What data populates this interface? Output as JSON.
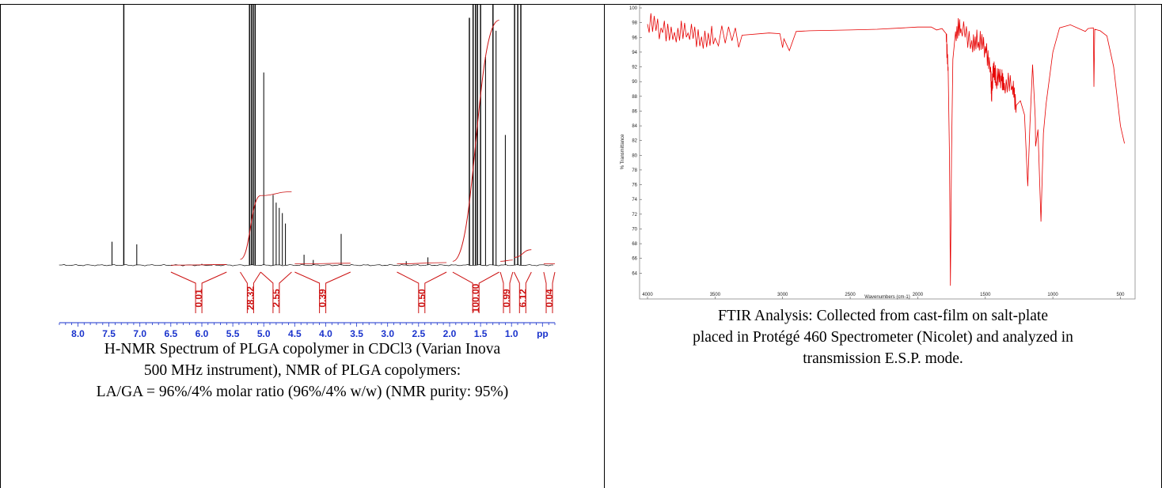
{
  "nmr": {
    "caption_lines": [
      "H-NMR Spectrum of PLGA copolymer in CDCl3 (Varian Inova",
      "500 MHz instrument), NMR of PLGA copolymers:",
      "LA/GA = 96%/4% molar ratio (96%/4% w/w) (NMR purity: 95%)"
    ]
  },
  "ftir": {
    "caption_lines": [
      "FTIR Analysis: Collected from cast-film on salt-plate",
      "placed in Protégé 460 Spectrometer (Nicolet) and analyzed in",
      "transmission E.S.P. mode."
    ]
  },
  "chart_data": [
    {
      "type": "line",
      "id": "nmr",
      "xlabel": "pp",
      "x_tick_labels": [
        "8.0",
        "7.5",
        "7.0",
        "6.5",
        "6.0",
        "5.5",
        "5.0",
        "4.5",
        "4.0",
        "3.5",
        "3.0",
        "2.5",
        "2.0",
        "1.5",
        "1.0",
        "pp"
      ],
      "xlim": [
        8.3,
        0.3
      ],
      "x_reversed": true,
      "colors": {
        "spectrum": "#000000",
        "integral": "#cc1111",
        "axis": "#1a33cc"
      },
      "peaks": [
        {
          "ppm": 7.45,
          "height": 0.09
        },
        {
          "ppm": 7.26,
          "height": 1.0
        },
        {
          "ppm": 7.05,
          "height": 0.08
        },
        {
          "ppm": 6.0,
          "height": 0.005
        },
        {
          "ppm": 5.23,
          "height": 1.0
        },
        {
          "ppm": 5.2,
          "height": 1.0
        },
        {
          "ppm": 5.17,
          "height": 1.0
        },
        {
          "ppm": 5.14,
          "height": 1.0
        },
        {
          "ppm": 5.0,
          "height": 0.74
        },
        {
          "ppm": 4.85,
          "height": 0.27
        },
        {
          "ppm": 4.8,
          "height": 0.24
        },
        {
          "ppm": 4.75,
          "height": 0.22
        },
        {
          "ppm": 4.7,
          "height": 0.2
        },
        {
          "ppm": 4.65,
          "height": 0.16
        },
        {
          "ppm": 4.35,
          "height": 0.04
        },
        {
          "ppm": 4.2,
          "height": 0.02
        },
        {
          "ppm": 3.75,
          "height": 0.12
        },
        {
          "ppm": 2.7,
          "height": 0.015
        },
        {
          "ppm": 2.35,
          "height": 0.03
        },
        {
          "ppm": 1.68,
          "height": 0.95
        },
        {
          "ppm": 1.62,
          "height": 1.0
        },
        {
          "ppm": 1.58,
          "height": 1.0
        },
        {
          "ppm": 1.55,
          "height": 1.0
        },
        {
          "ppm": 1.5,
          "height": 1.0
        },
        {
          "ppm": 1.42,
          "height": 0.8
        },
        {
          "ppm": 1.3,
          "height": 1.0
        },
        {
          "ppm": 1.25,
          "height": 0.9
        },
        {
          "ppm": 1.1,
          "height": 0.5
        },
        {
          "ppm": 0.95,
          "height": 1.0
        },
        {
          "ppm": 0.9,
          "height": 1.0
        },
        {
          "ppm": 0.85,
          "height": 1.0
        }
      ],
      "integrals": [
        {
          "label": "0.01",
          "from_ppm": 6.5,
          "to_ppm": 5.6
        },
        {
          "label": "28.32",
          "from_ppm": 5.38,
          "to_ppm": 5.05
        },
        {
          "label": "2.55",
          "from_ppm": 5.05,
          "to_ppm": 4.55
        },
        {
          "label": "0.39",
          "from_ppm": 4.5,
          "to_ppm": 3.6
        },
        {
          "label": "0.50",
          "from_ppm": 2.85,
          "to_ppm": 2.05
        },
        {
          "label": "100.00",
          "from_ppm": 1.95,
          "to_ppm": 1.2
        },
        {
          "label": "0.99",
          "from_ppm": 1.18,
          "to_ppm": 0.98
        },
        {
          "label": "6.12",
          "from_ppm": 0.96,
          "to_ppm": 0.68
        },
        {
          "label": "0.04",
          "from_ppm": 0.48,
          "to_ppm": 0.3
        }
      ]
    },
    {
      "type": "line",
      "id": "ftir",
      "xlabel": "Wavenumbers (cm-1)",
      "ylabel": "% Transmittance",
      "xlim": [
        4000,
        450
      ],
      "x_reversed": true,
      "ylim": [
        62,
        100
      ],
      "x_ticks": [
        4000,
        3500,
        3000,
        2500,
        2000,
        1500,
        1000,
        500
      ],
      "y_ticks": [
        64,
        66,
        68,
        70,
        72,
        74,
        76,
        78,
        80,
        82,
        84,
        86,
        88,
        90,
        92,
        94,
        96,
        98,
        100
      ],
      "colors": {
        "spectrum": "#e60000"
      },
      "points": [
        [
          4000,
          97.8
        ],
        [
          3900,
          97.3
        ],
        [
          3800,
          96.7
        ],
        [
          3700,
          96.6
        ],
        [
          3600,
          96.1
        ],
        [
          3500,
          95.9
        ],
        [
          3300,
          96.3
        ],
        [
          3100,
          96.6
        ],
        [
          3020,
          96.5
        ],
        [
          3000,
          94.6
        ],
        [
          2990,
          95.8
        ],
        [
          2950,
          94.2
        ],
        [
          2900,
          96.8
        ],
        [
          2800,
          96.9
        ],
        [
          2500,
          97.0
        ],
        [
          2300,
          97.1
        ],
        [
          2100,
          97.3
        ],
        [
          2000,
          97.4
        ],
        [
          1900,
          97.4
        ],
        [
          1860,
          97.0
        ],
        [
          1820,
          97.2
        ],
        [
          1790,
          96.5
        ],
        [
          1775,
          92.0
        ],
        [
          1765,
          80.0
        ],
        [
          1758,
          62.3
        ],
        [
          1750,
          80.0
        ],
        [
          1740,
          93.0
        ],
        [
          1720,
          96.8
        ],
        [
          1680,
          97.2
        ],
        [
          1600,
          95.6
        ],
        [
          1550,
          95.4
        ],
        [
          1500,
          94.8
        ],
        [
          1460,
          92.0
        ],
        [
          1454,
          87.5
        ],
        [
          1440,
          92.5
        ],
        [
          1420,
          90.0
        ],
        [
          1382,
          90.8
        ],
        [
          1360,
          89.8
        ],
        [
          1300,
          89.4
        ],
        [
          1270,
          86.8
        ],
        [
          1240,
          87.4
        ],
        [
          1210,
          85.5
        ],
        [
          1186,
          75.8
        ],
        [
          1170,
          84.0
        ],
        [
          1150,
          92.3
        ],
        [
          1130,
          85.0
        ],
        [
          1128,
          81.2
        ],
        [
          1110,
          83.5
        ],
        [
          1088,
          71.0
        ],
        [
          1070,
          83.0
        ],
        [
          1050,
          87.0
        ],
        [
          1000,
          94.0
        ],
        [
          950,
          97.3
        ],
        [
          870,
          97.7
        ],
        [
          760,
          96.8
        ],
        [
          740,
          97.2
        ],
        [
          700,
          97.3
        ],
        [
          696,
          89.3
        ],
        [
          690,
          97.1
        ],
        [
          650,
          96.9
        ],
        [
          600,
          96.2
        ],
        [
          550,
          92.0
        ],
        [
          500,
          84.0
        ],
        [
          470,
          81.6
        ]
      ]
    }
  ]
}
